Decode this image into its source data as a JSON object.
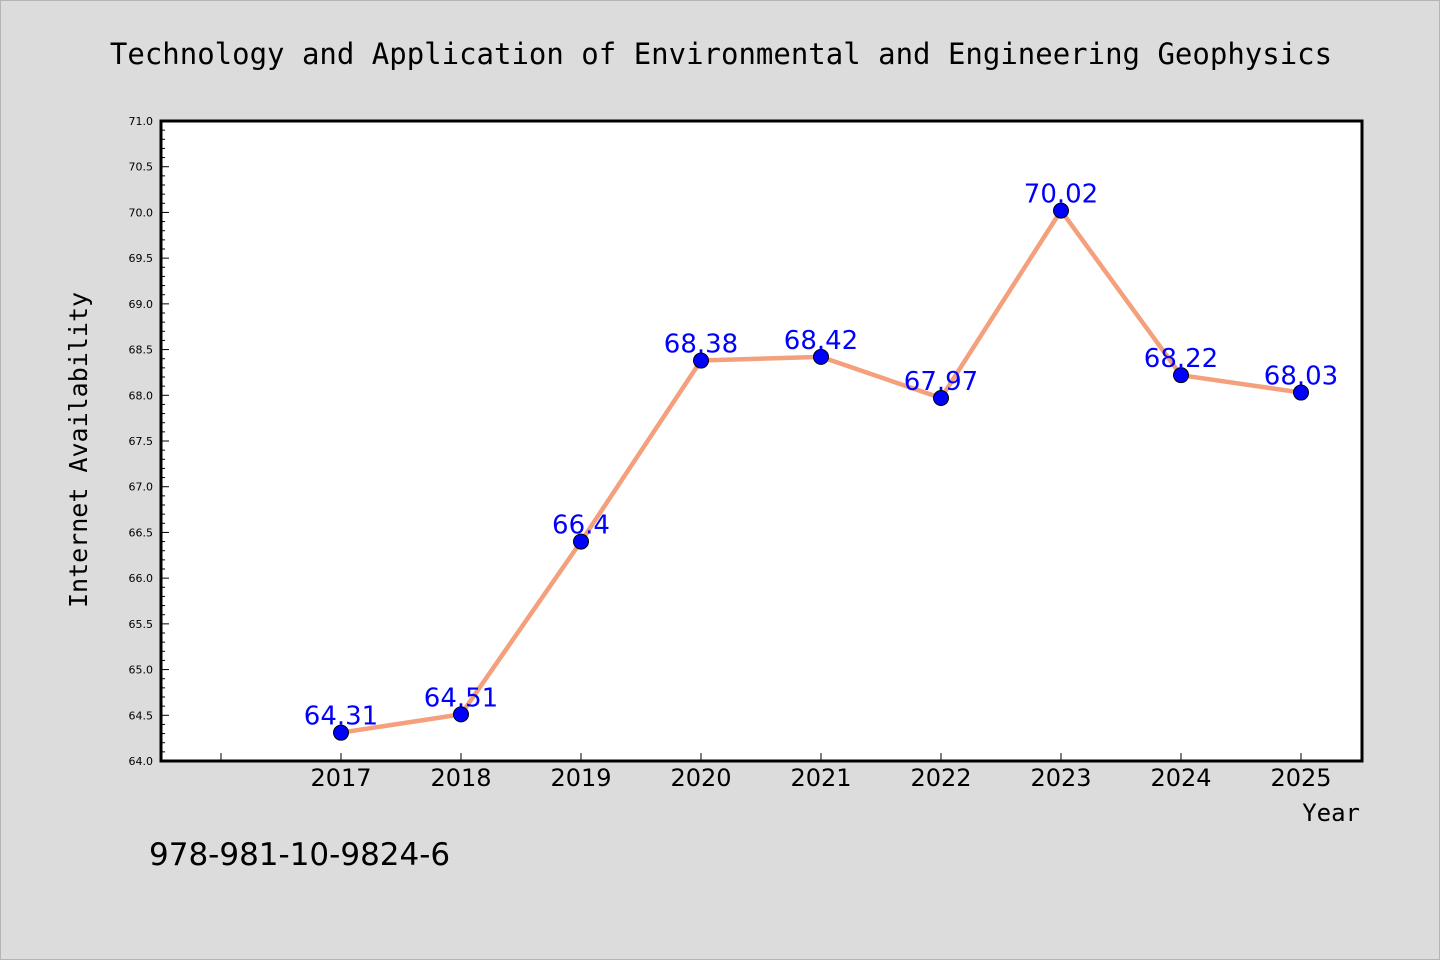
{
  "chart_data": {
    "type": "line",
    "title": "Technology and Application of Environmental and Engineering Geophysics",
    "xlabel": "Year",
    "ylabel": "Internet Availability",
    "categories": [
      "2017",
      "2018",
      "2019",
      "2020",
      "2021",
      "2022",
      "2023",
      "2024",
      "2025"
    ],
    "values": [
      64.31,
      64.51,
      66.4,
      68.38,
      68.42,
      67.97,
      70.02,
      68.22,
      68.03
    ],
    "data_labels": [
      "64.31",
      "64.51",
      "66.4",
      "68.38",
      "68.42",
      "67.97",
      "70.02",
      "68.22",
      "68.03"
    ],
    "ylim": [
      64.0,
      71.0
    ],
    "yticks": [
      "64.0",
      "64.5",
      "65.0",
      "65.5",
      "66.0",
      "66.5",
      "67.0",
      "67.5",
      "68.0",
      "68.5",
      "69.0",
      "69.5",
      "70.0",
      "70.5",
      "71.0"
    ],
    "grid": false,
    "colors": {
      "line": "#f4a07c",
      "marker": "#0000ff",
      "label": "#0000ff",
      "background": "#dcdcdc",
      "plot_background": "#ffffff"
    }
  },
  "footer": {
    "isbn": "978-981-10-9824-6"
  }
}
